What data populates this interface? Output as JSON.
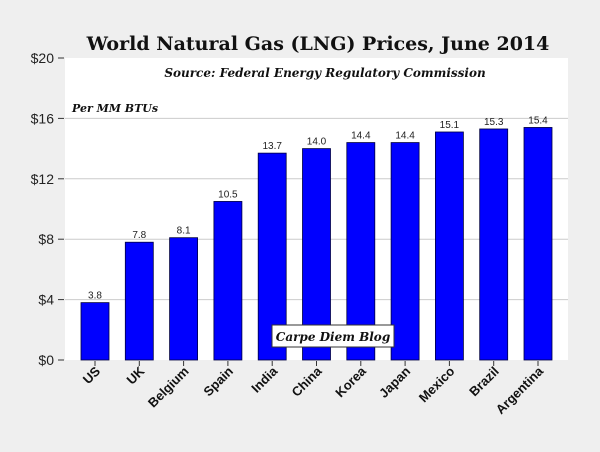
{
  "chart_data": {
    "type": "bar",
    "title": "World Natural Gas (LNG) Prices, June 2014",
    "subtitle": "Source: Federal Energy Regulatory Commission",
    "ylabel": "Per MM BTUs",
    "xlabel": "",
    "categories": [
      "US",
      "UK",
      "Belgium",
      "Spain",
      "India",
      "China",
      "Korea",
      "Japan",
      "Mexico",
      "Brazil",
      "Argentina"
    ],
    "values": [
      3.8,
      7.8,
      8.1,
      10.5,
      13.7,
      14.0,
      14.4,
      14.4,
      15.1,
      15.3,
      15.4
    ],
    "data_labels": [
      "3.8",
      "7.8",
      "8.1",
      "10.5",
      "13.7",
      "14.0",
      "14.4",
      "14.4",
      "15.1",
      "15.3",
      "15.4"
    ],
    "ylim": [
      0,
      20
    ],
    "yticks": [
      0,
      4,
      8,
      12,
      16,
      20
    ],
    "ytick_labels": [
      "$0",
      "$4",
      "$8",
      "$12",
      "$16",
      "$20"
    ],
    "grid": true,
    "watermark": "Carpe Diem Blog",
    "colors": {
      "bar": "#0000ff",
      "background": "#efefef",
      "plot": "#ffffff"
    }
  }
}
